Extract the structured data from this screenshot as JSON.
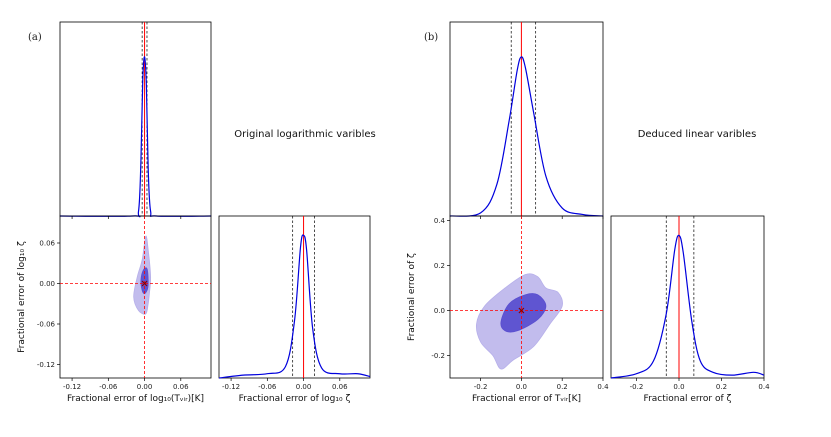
{
  "chart_data": [
    {
      "panel_label": "(a)",
      "note": "Original logarithmic varibles",
      "type": "corner",
      "colors": {
        "curve": "#0000dd",
        "truth": "#ff0000",
        "quantile": "#000000",
        "contour_inner": "#5a4fd0",
        "contour_outer": "#b7b0ea"
      },
      "marginal_top": {
        "type": "line",
        "xlim": [
          -0.14,
          0.11
        ],
        "x": [
          -0.14,
          -0.02,
          -0.01,
          -0.006,
          -0.003,
          0.0,
          0.003,
          0.006,
          0.01,
          0.02,
          0.11
        ],
        "density": [
          0.0,
          0.0,
          0.03,
          0.35,
          0.85,
          1.0,
          0.82,
          0.3,
          0.03,
          0.0,
          0.0
        ],
        "quantiles": [
          -0.004,
          0.004
        ],
        "truth": 0.0
      },
      "joint": {
        "type": "contour",
        "xlabel": "Fractional error of log₁₀(Tᵥᵢᵣ)[K]",
        "ylabel": "Fractional error of log₁₀ ζ",
        "xlim": [
          -0.14,
          0.11
        ],
        "ylim": [
          -0.14,
          0.1
        ],
        "xticks": [
          "-0.12",
          "-0.06",
          "0.00",
          "0.06"
        ],
        "yticks": [
          "0.06",
          "0.00",
          "-0.06",
          "-0.12"
        ],
        "xtick_values": [
          -0.12,
          -0.06,
          0.0,
          0.06
        ],
        "ytick_values": [
          0.06,
          0.0,
          -0.06,
          -0.12
        ],
        "truth": [
          0.0,
          0.0
        ],
        "contour_outer": [
          [
            -0.01,
            -0.04
          ],
          [
            -0.018,
            -0.02
          ],
          [
            -0.012,
            0.01
          ],
          [
            -0.004,
            0.035
          ],
          [
            0.002,
            0.07
          ],
          [
            0.006,
            0.05
          ],
          [
            0.01,
            0.01
          ],
          [
            0.008,
            -0.015
          ],
          [
            0.006,
            -0.03
          ],
          [
            0.002,
            -0.045
          ]
        ],
        "contour_inner": [
          [
            -0.004,
            -0.01
          ],
          [
            -0.006,
            0.005
          ],
          [
            -0.002,
            0.02
          ],
          [
            0.004,
            0.022
          ],
          [
            0.006,
            0.005
          ],
          [
            0.005,
            -0.008
          ],
          [
            0.0,
            -0.015
          ]
        ]
      },
      "marginal_right": {
        "type": "line",
        "xlabel": "Fractional error of log₁₀ ζ",
        "xlim": [
          -0.14,
          0.11
        ],
        "xticks": [
          "-0.12",
          "-0.06",
          "0.00",
          "0.06"
        ],
        "xtick_values": [
          -0.12,
          -0.06,
          0.0,
          0.06
        ],
        "x": [
          -0.14,
          -0.1,
          -0.06,
          -0.03,
          -0.015,
          -0.005,
          0.0,
          0.005,
          0.015,
          0.03,
          0.06,
          0.09,
          0.11
        ],
        "density": [
          0.0,
          0.02,
          0.03,
          0.08,
          0.4,
          0.92,
          1.0,
          0.9,
          0.35,
          0.07,
          0.03,
          0.03,
          0.01
        ],
        "quantiles": [
          -0.018,
          0.018
        ],
        "truth": 0.0
      }
    },
    {
      "panel_label": "(b)",
      "note": "Deduced linear varibles",
      "type": "corner",
      "colors": {
        "curve": "#0000dd",
        "truth": "#ff0000",
        "quantile": "#000000",
        "contour_inner": "#5a4fd0",
        "contour_outer": "#b7b0ea"
      },
      "marginal_top": {
        "type": "line",
        "xlim": [
          -0.35,
          0.4
        ],
        "x": [
          -0.35,
          -0.2,
          -0.12,
          -0.06,
          -0.02,
          0.0,
          0.02,
          0.06,
          0.12,
          0.2,
          0.3,
          0.4
        ],
        "density": [
          0.0,
          0.02,
          0.2,
          0.6,
          0.92,
          1.0,
          0.93,
          0.65,
          0.25,
          0.05,
          0.01,
          0.0
        ],
        "quantiles": [
          -0.05,
          0.07
        ],
        "truth": 0.0
      },
      "joint": {
        "type": "contour",
        "xlabel": "Fractional error of Tᵥᵢᵣ[K]",
        "ylabel": "Fractional error of ζ",
        "xlim": [
          -0.35,
          0.4
        ],
        "ylim": [
          -0.3,
          0.42
        ],
        "xticks": [
          "-0.2",
          "0.0",
          "0.2",
          "0.4"
        ],
        "yticks": [
          "0.4",
          "0.2",
          "0.0",
          "-0.2"
        ],
        "xtick_values": [
          -0.2,
          0.0,
          0.2,
          0.4
        ],
        "ytick_values": [
          0.4,
          0.2,
          0.0,
          -0.2
        ],
        "truth": [
          0.0,
          0.0
        ],
        "contour_outer": [
          [
            -0.22,
            -0.06
          ],
          [
            -0.18,
            0.02
          ],
          [
            -0.08,
            0.1
          ],
          [
            0.02,
            0.16
          ],
          [
            0.08,
            0.15
          ],
          [
            0.12,
            0.1
          ],
          [
            0.18,
            0.08
          ],
          [
            0.2,
            0.02
          ],
          [
            0.14,
            -0.06
          ],
          [
            0.06,
            -0.16
          ],
          [
            -0.04,
            -0.22
          ],
          [
            -0.1,
            -0.26
          ],
          [
            -0.14,
            -0.2
          ],
          [
            -0.2,
            -0.14
          ]
        ],
        "contour_inner": [
          [
            -0.1,
            -0.05
          ],
          [
            -0.06,
            0.03
          ],
          [
            0.02,
            0.07
          ],
          [
            0.08,
            0.07
          ],
          [
            0.12,
            0.02
          ],
          [
            0.08,
            -0.04
          ],
          [
            -0.02,
            -0.09
          ],
          [
            -0.08,
            -0.09
          ]
        ]
      },
      "marginal_right": {
        "type": "line",
        "xlabel": "Fractional error of ζ",
        "xlim": [
          -0.32,
          0.4
        ],
        "xticks": [
          "-0.2",
          "0.0",
          "0.2",
          "0.4"
        ],
        "xtick_values": [
          -0.2,
          0.0,
          0.2,
          0.4
        ],
        "x": [
          -0.32,
          -0.2,
          -0.12,
          -0.06,
          -0.02,
          0.0,
          0.02,
          0.06,
          0.1,
          0.16,
          0.25,
          0.35,
          0.4
        ],
        "density": [
          0.0,
          0.03,
          0.12,
          0.45,
          0.9,
          1.0,
          0.88,
          0.4,
          0.12,
          0.04,
          0.02,
          0.04,
          0.02
        ],
        "quantiles": [
          -0.06,
          0.07
        ],
        "truth": 0.0
      }
    }
  ]
}
